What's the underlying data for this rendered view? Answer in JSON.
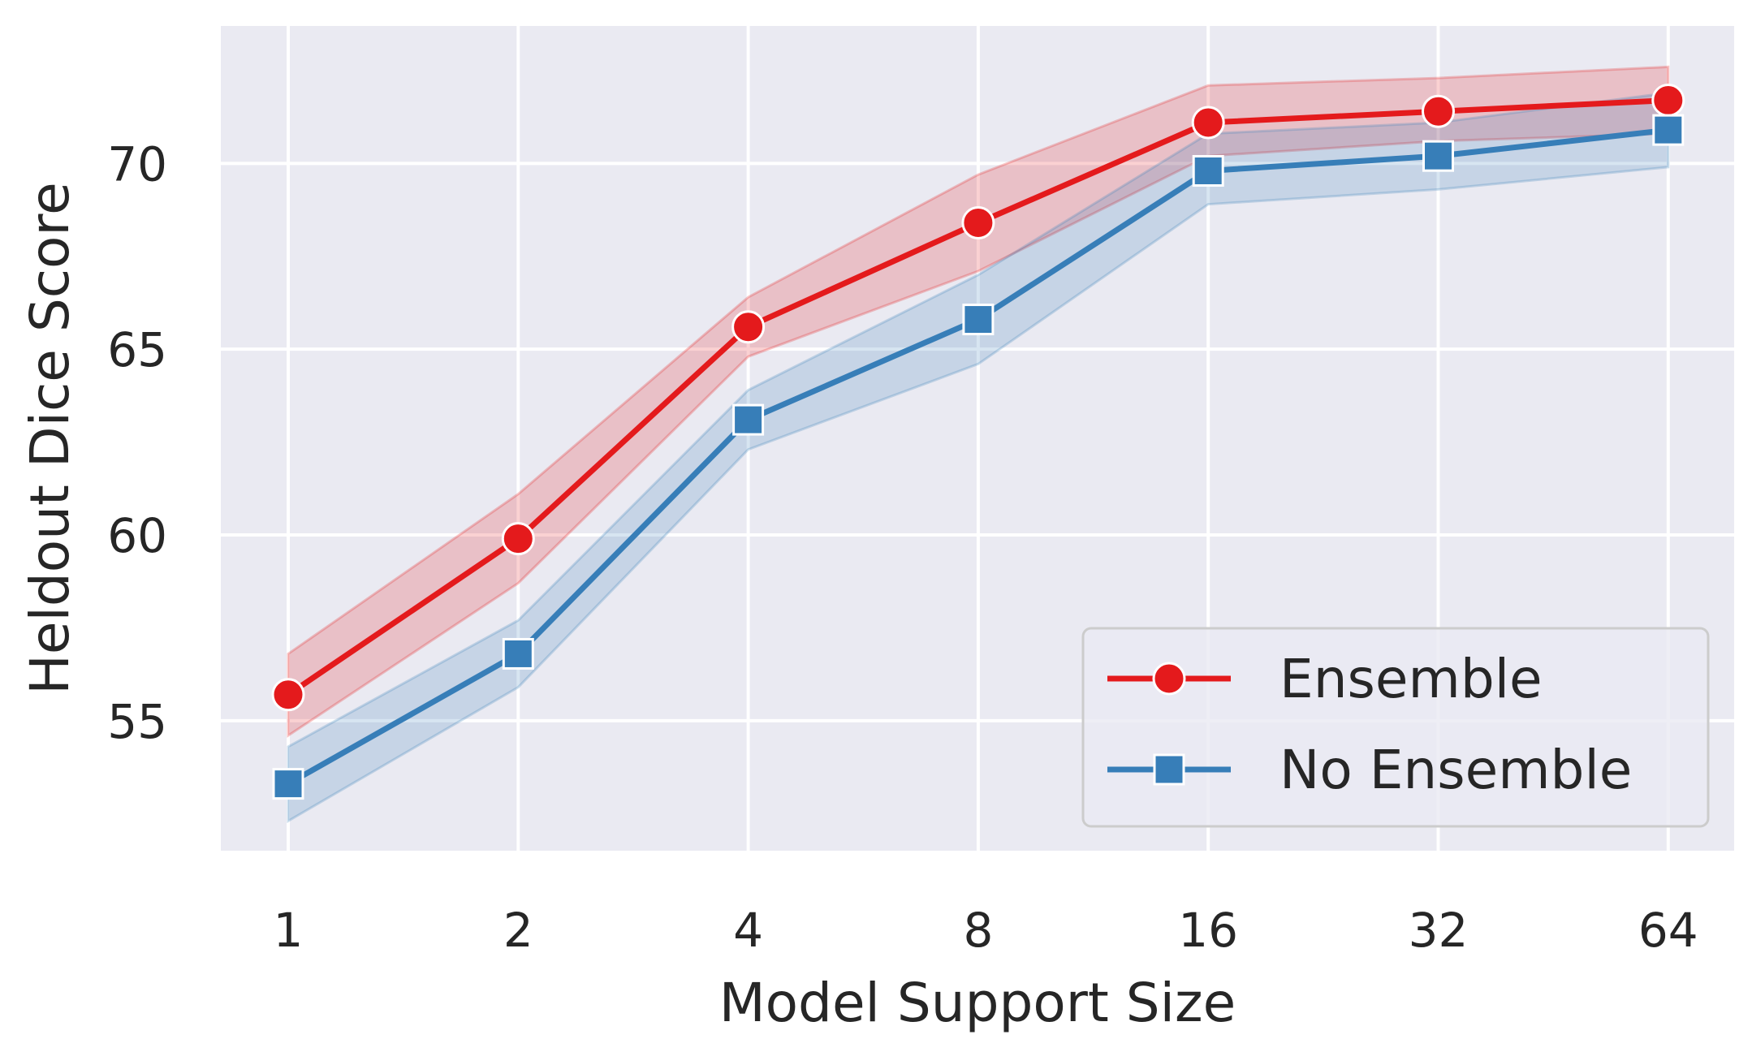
{
  "chart_data": {
    "type": "line",
    "title": "",
    "xlabel": "Model Support Size",
    "ylabel": "Heldout Dice Score",
    "x": [
      "1",
      "2",
      "4",
      "8",
      "16",
      "32",
      "64"
    ],
    "ylim": [
      51.5,
      73.7
    ],
    "yticks": [
      "55",
      "60",
      "65",
      "70"
    ],
    "grid": true,
    "legend_position": "bottom-right",
    "series": [
      {
        "name": "Ensemble",
        "marker": "circle",
        "color": "#e41a1c",
        "values": [
          55.7,
          59.9,
          65.6,
          68.4,
          71.1,
          71.4,
          71.7
        ],
        "ci_lower": [
          54.6,
          58.7,
          64.8,
          67.1,
          70.2,
          70.6,
          70.8
        ],
        "ci_upper": [
          56.8,
          61.1,
          66.4,
          69.7,
          72.1,
          72.3,
          72.6
        ]
      },
      {
        "name": "No Ensemble",
        "marker": "square",
        "color": "#377eb8",
        "values": [
          53.3,
          56.8,
          63.1,
          65.8,
          69.8,
          70.2,
          70.9
        ],
        "ci_lower": [
          52.3,
          55.9,
          62.3,
          64.6,
          68.9,
          69.3,
          69.9
        ],
        "ci_upper": [
          54.3,
          57.7,
          63.9,
          67.0,
          70.8,
          71.1,
          71.9
        ]
      }
    ]
  }
}
